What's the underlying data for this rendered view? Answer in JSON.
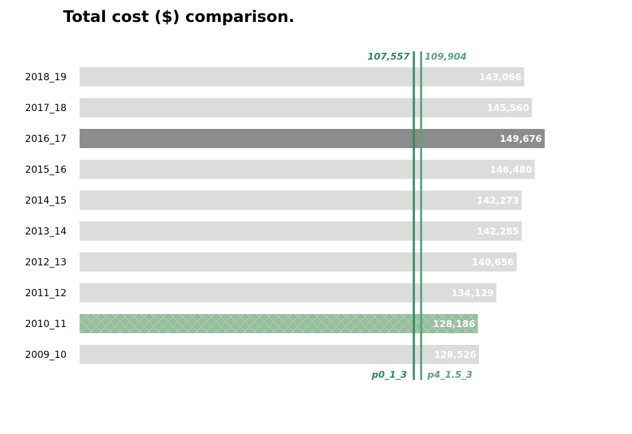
{
  "chart_data": {
    "type": "bar",
    "orientation": "horizontal",
    "title": "Total cost ($) comparison.",
    "xlabel": "",
    "ylabel": "",
    "xlim": [
      0,
      176000
    ],
    "grid": false,
    "categories": [
      "2018_19",
      "2017_18",
      "2016_17",
      "2015_16",
      "2014_15",
      "2013_14",
      "2012_13",
      "2011_12",
      "2010_11",
      "2009_10"
    ],
    "values": [
      143066,
      145560,
      149676,
      146480,
      142273,
      142285,
      140656,
      134129,
      128186,
      128526
    ],
    "value_labels": [
      "143,066",
      "145,560",
      "149,676",
      "146,480",
      "142,273",
      "142,285",
      "140,656",
      "134,129",
      "128,186",
      "128,526"
    ],
    "highlight": {
      "2016_17": "#8c8c8c",
      "2010_11": "#8fc1a3"
    },
    "hatched_category": "2010_11",
    "default_bar_color": "#dcdcdc",
    "reference_lines": [
      {
        "value": 107557,
        "top_label": "107,557",
        "bottom_label": "p0_1_3",
        "color": "#2e8b57",
        "label_side": "left"
      },
      {
        "value": 109904,
        "top_label": "109,904",
        "bottom_label": "p4_1.5_3",
        "color": "#5aa37a",
        "label_side": "right"
      }
    ]
  }
}
